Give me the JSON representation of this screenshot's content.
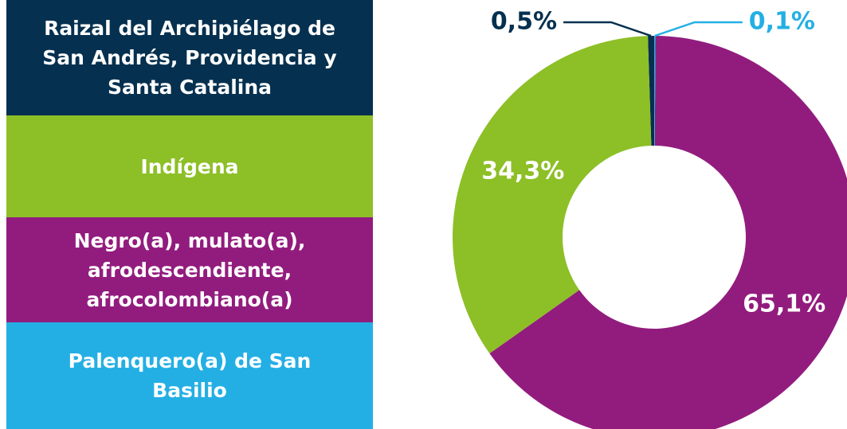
{
  "chart_data": {
    "type": "pie",
    "categories": [
      "Raizal del Archipiélago de San Andrés, Providencia y Santa Catalina",
      "Indígena",
      "Negro(a), mulato(a), afrodescendiente, afrocolombiano(a)",
      "Palenquero(a) de San Basilio"
    ],
    "values": [
      0.5,
      34.3,
      65.1,
      0.1
    ],
    "value_labels": [
      "0,5%",
      "34,3%",
      "65,1%",
      "0,1%"
    ],
    "colors": [
      "#05304f",
      "#8dbf27",
      "#921c7e",
      "#24afe4"
    ]
  }
}
